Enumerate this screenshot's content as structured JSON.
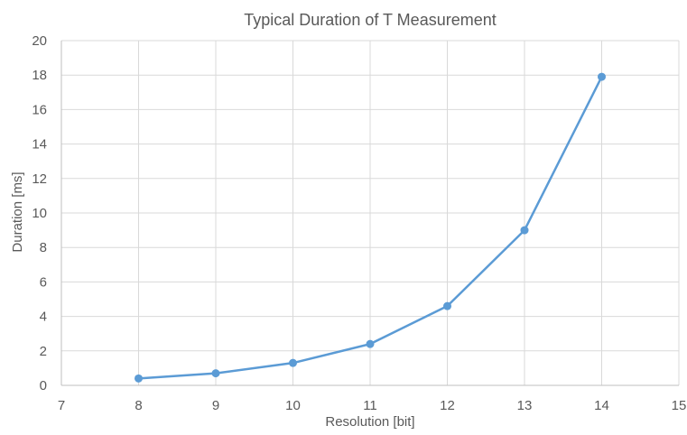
{
  "chart_data": {
    "type": "scatter",
    "title": "Typical Duration of T Measurement",
    "xlabel": "Resolution [bit]",
    "ylabel": "Duration [ms]",
    "xlim": [
      7,
      15
    ],
    "ylim": [
      0,
      20
    ],
    "x_ticks": [
      7,
      8,
      9,
      10,
      11,
      12,
      13,
      14,
      15
    ],
    "y_ticks": [
      0,
      2,
      4,
      6,
      8,
      10,
      12,
      14,
      16,
      18,
      20
    ],
    "grid": true,
    "legend": "none",
    "series": [
      {
        "x": [
          8,
          9,
          10,
          11,
          12,
          13,
          14
        ],
        "y": [
          0.4,
          0.7,
          1.3,
          2.4,
          4.6,
          9.0,
          17.9
        ],
        "color": "#5b9bd5",
        "style": "line-with-markers"
      }
    ]
  }
}
